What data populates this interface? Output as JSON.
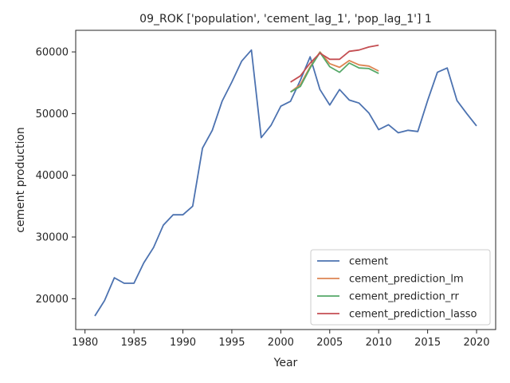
{
  "chart_data": {
    "type": "line",
    "title": "09_ROK ['population', 'cement_lag_1', 'pop_lag_1'] 1",
    "xlabel": "Year",
    "ylabel": "cement production",
    "xlim": [
      1979.05,
      2021.95
    ],
    "ylim": [
      15000,
      63500
    ],
    "xticks": [
      1980,
      1985,
      1990,
      1995,
      2000,
      2005,
      2010,
      2015,
      2020
    ],
    "yticks": [
      20000,
      30000,
      40000,
      50000,
      60000
    ],
    "grid": false,
    "legend_position": "lower-right",
    "series": [
      {
        "name": "cement",
        "color": "#4c72b0",
        "x": [
          1981,
          1982,
          1983,
          1984,
          1985,
          1986,
          1987,
          1988,
          1989,
          1990,
          1991,
          1992,
          1993,
          1994,
          1995,
          1996,
          1997,
          1998,
          1999,
          2000,
          2001,
          2002,
          2003,
          2004,
          2005,
          2006,
          2007,
          2008,
          2009,
          2010,
          2011,
          2012,
          2013,
          2014,
          2015,
          2016,
          2017,
          2018,
          2019,
          2020
        ],
        "y": [
          17200,
          19700,
          23400,
          22500,
          22500,
          25800,
          28300,
          31900,
          33600,
          33600,
          35000,
          44400,
          47300,
          52000,
          55100,
          58500,
          60300,
          46100,
          48100,
          51200,
          52000,
          55400,
          59200,
          53900,
          51400,
          53900,
          52200,
          51700,
          50100,
          47400,
          48200,
          46900,
          47300,
          47100,
          52100,
          56700,
          57400,
          52100,
          50000,
          48000
        ]
      },
      {
        "name": "cement_prediction_lm",
        "color": "#dd8452",
        "x": [
          2001,
          2002,
          2003,
          2004,
          2005,
          2006,
          2007,
          2008,
          2009,
          2010
        ],
        "y": [
          53500,
          54700,
          57600,
          60000,
          58100,
          57500,
          58600,
          57900,
          57700,
          56900
        ]
      },
      {
        "name": "cement_prediction_rr",
        "color": "#55a868",
        "x": [
          2001,
          2002,
          2003,
          2004,
          2005,
          2006,
          2007,
          2008,
          2009,
          2010
        ],
        "y": [
          53500,
          54400,
          57400,
          59900,
          57600,
          56700,
          58200,
          57400,
          57300,
          56500
        ]
      },
      {
        "name": "cement_prediction_lasso",
        "color": "#c44e52",
        "x": [
          2001,
          2002,
          2003,
          2004,
          2005,
          2006,
          2007,
          2008,
          2009,
          2010
        ],
        "y": [
          55100,
          56100,
          58200,
          59800,
          58800,
          58800,
          60100,
          60300,
          60800,
          61100
        ]
      }
    ]
  }
}
